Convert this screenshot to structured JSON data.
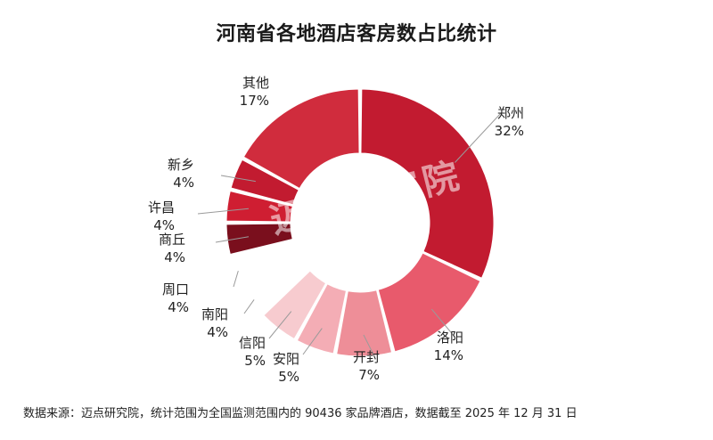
{
  "title": "河南省各地酒店客房数占比统计",
  "footer": "数据来源：迈点研究院，统计范围为全国监测范围内的 90436 家品牌酒店，数据截至 2025 年 12 月 31 日",
  "watermark": "迈点研究院",
  "chart_data": {
    "type": "pie",
    "variant": "donut",
    "title": "河南省各地酒店客房数占比统计",
    "categories": [
      "郑州",
      "洛阳",
      "开封",
      "安阳",
      "信阳",
      "南阳",
      "周口",
      "商丘",
      "许昌",
      "新乡",
      "其他"
    ],
    "values": [
      32,
      14,
      7,
      5,
      5,
      4,
      4,
      4,
      4,
      4,
      17
    ],
    "value_labels": [
      "32%",
      "14%",
      "7%",
      "5%",
      "5%",
      "4%",
      "4%",
      "4%",
      "4%",
      "4%",
      "17%"
    ],
    "colors": [
      "#c21b30",
      "#e85a6c",
      "#ee8e98",
      "#f4adb5",
      "#f7cbcf",
      "#ffffff",
      "#ffffff",
      "#7a0f1d",
      "#cf1e32",
      "#c21b30",
      "#d02c3d"
    ],
    "legend": "none"
  }
}
